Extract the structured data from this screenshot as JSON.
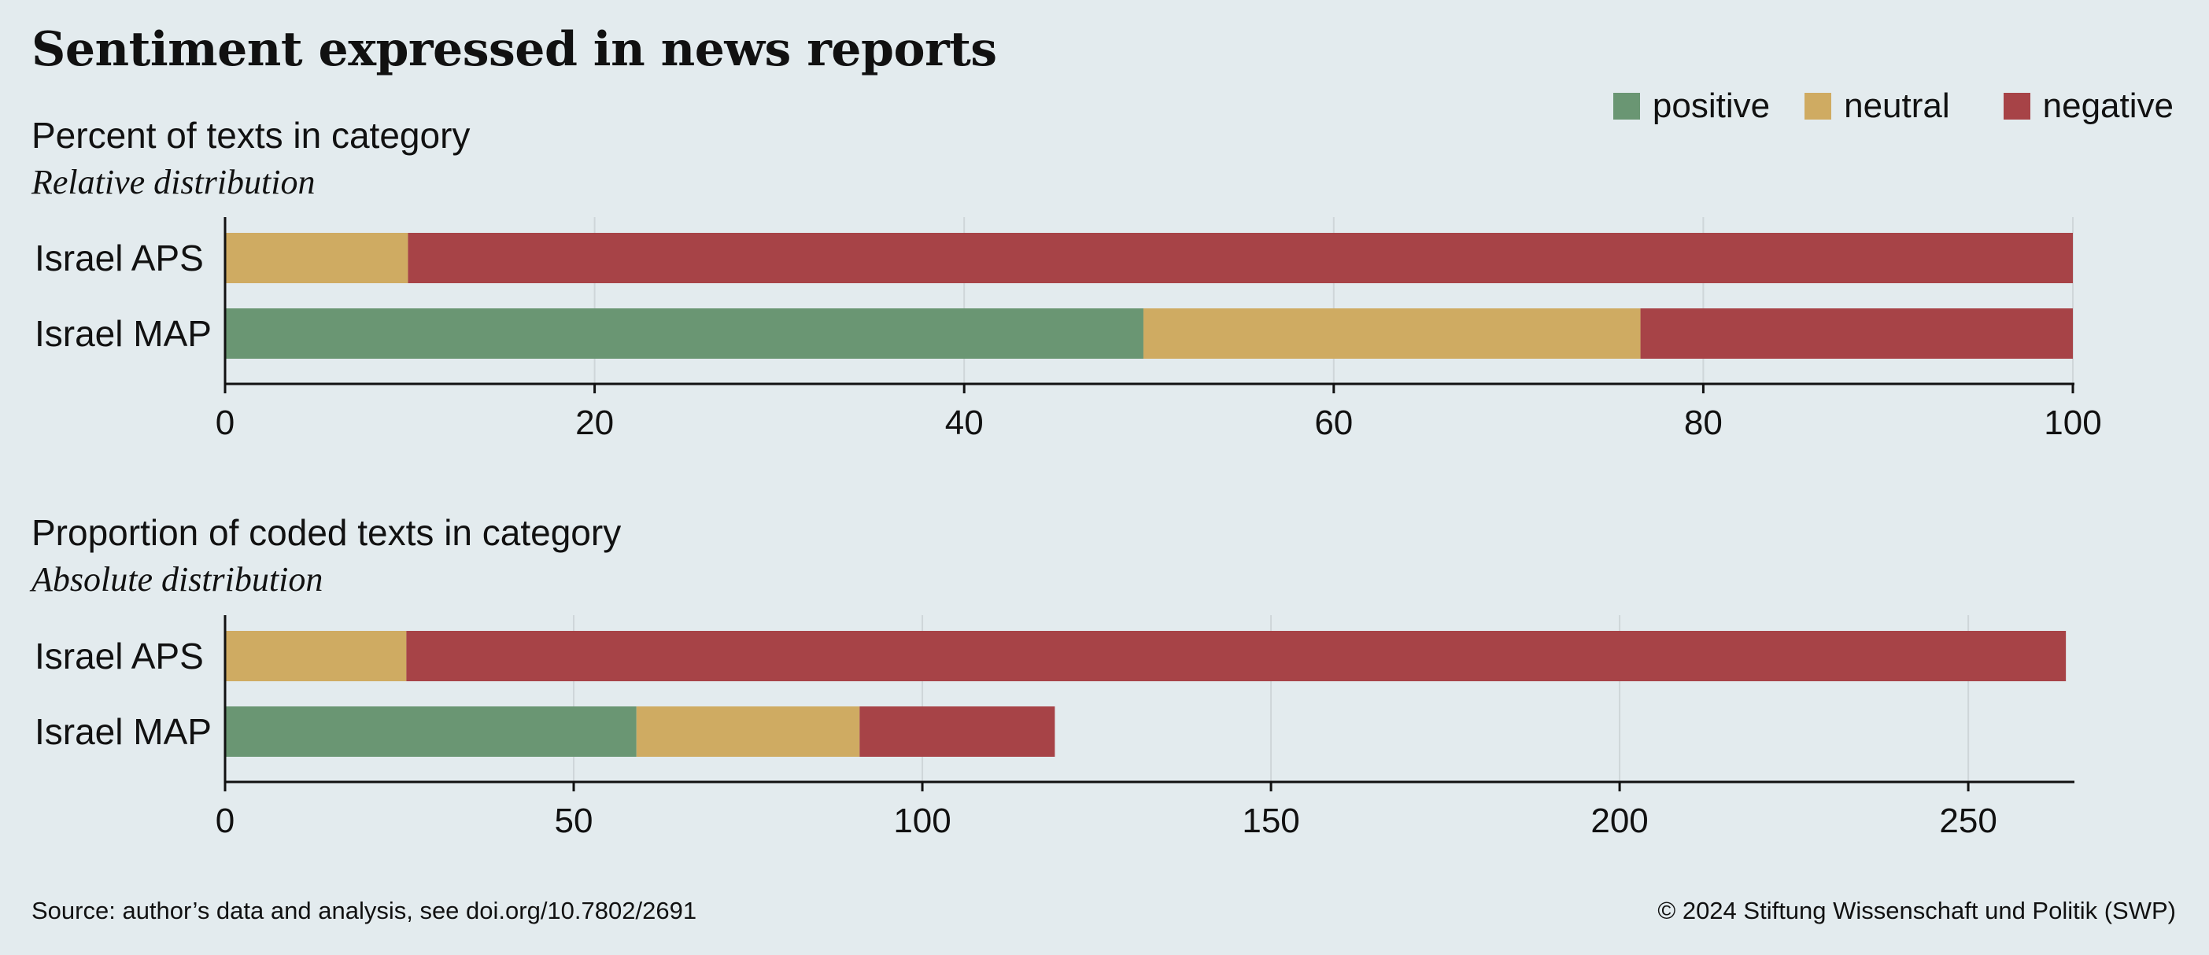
{
  "title": "Sentiment expressed in news reports",
  "legend": [
    {
      "label": "positive",
      "color": "#6a9673"
    },
    {
      "label": "neutral",
      "color": "#cfab62"
    },
    {
      "label": "negative",
      "color": "#a74347"
    }
  ],
  "source": "Source: author’s data and analysis, see doi.org/10.7802/2691",
  "copyright": "© 2024 Stiftung Wissenschaft und Politik (SWP)",
  "chart_data": [
    {
      "type": "bar",
      "orientation": "horizontal",
      "stacked": true,
      "title": "Percent of texts in category",
      "subtitle": "Relative distribution",
      "categories": [
        "Israel  APS",
        "Israel MAP"
      ],
      "series": [
        {
          "name": "positive",
          "values": [
            0,
            49.7
          ]
        },
        {
          "name": "neutral",
          "values": [
            9.9,
            26.9
          ]
        },
        {
          "name": "negative",
          "values": [
            90.1,
            23.4
          ]
        }
      ],
      "xlim": [
        0,
        100
      ],
      "xticks": [
        0,
        20,
        40,
        60,
        80,
        100
      ],
      "grid": true
    },
    {
      "type": "bar",
      "orientation": "horizontal",
      "stacked": true,
      "title": "Proportion of coded texts in category",
      "subtitle": "Absolute distribution",
      "categories": [
        "Israel  APS",
        "Israel MAP"
      ],
      "series": [
        {
          "name": "positive",
          "values": [
            0,
            59
          ]
        },
        {
          "name": "neutral",
          "values": [
            26,
            32
          ]
        },
        {
          "name": "negative",
          "values": [
            238,
            28
          ]
        }
      ],
      "xlim": [
        0,
        265
      ],
      "xticks": [
        0,
        50,
        100,
        150,
        200,
        250
      ],
      "grid": true
    }
  ]
}
